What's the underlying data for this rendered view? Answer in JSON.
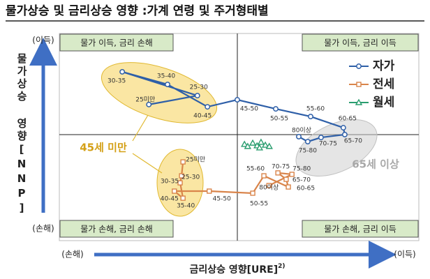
{
  "chart_data": {
    "type": "scatter-line",
    "title": "물가상승 및 금리상승 영향 :가계 연령 및 주거형태별",
    "x_label": "금리상승 영향[URE]",
    "x_label_note": "2)",
    "y_label": "물가상승 영향[NNP]",
    "y_top_label": "(이득)",
    "y_bottom_label": "(손해)",
    "x_left_label": "(손해)",
    "x_right_label": "(이득)",
    "quadrants": [
      "물가 이득, 금리 손해",
      "물가 이득, 금리 이득",
      "물가 손해, 금리 손해",
      "물가 손해, 금리 이득"
    ],
    "annotations": [
      "45세 미만",
      "65세 이상"
    ],
    "xlim": [
      -50,
      50
    ],
    "ylim": [
      -50,
      50
    ],
    "series": [
      {
        "name": "자가",
        "color": "#2e5fa8",
        "marker": "circle",
        "labels": [
          "25미만",
          "25-30",
          "30-35",
          "35-40",
          "40-45",
          "45-50",
          "50-55",
          "55-60",
          "60-65",
          "65-70",
          "70-75",
          "75-80",
          "80이상"
        ],
        "x": [
          -25.1,
          -11.6,
          -32.5,
          -19.9,
          -8.8,
          -0.5,
          10.2,
          19.9,
          29,
          29.4,
          22.8,
          19.1,
          16.6
        ],
        "values": [
          15.7,
          20,
          31.5,
          25.4,
          14.6,
          18,
          13.6,
          9.9,
          4.5,
          1.2,
          -0.2,
          -2.2,
          0.2
        ]
      },
      {
        "name": "전세",
        "color": "#d9844a",
        "marker": "square",
        "labels": [
          "25미만",
          "25-30",
          "30-35",
          "35-40",
          "40-45",
          "45-50",
          "50-55",
          "55-60",
          "60-65",
          "65-70",
          "70-75",
          "75-80",
          "80이상"
        ],
        "x": [
          -15.6,
          -16,
          -16.4,
          -15.6,
          -18,
          -8.3,
          3.8,
          6.9,
          13.7,
          13.1,
          10.8,
          14.7,
          8.3
        ],
        "values": [
          -12,
          -18.7,
          -22.1,
          -29.5,
          -26.1,
          -26.1,
          -27.1,
          -18.7,
          -24.1,
          -20.4,
          -17.3,
          -18,
          -23.4
        ]
      },
      {
        "name": "월세",
        "color": "#2a9d6f",
        "marker": "triangle",
        "x": [
          1.5,
          2.4,
          3.8,
          5,
          6.1,
          7.3,
          8.4,
          5.7
        ],
        "values": [
          -3.5,
          -4.5,
          -2.9,
          -4.2,
          -2.5,
          -3.9,
          -4.5,
          -5.2
        ]
      }
    ]
  }
}
